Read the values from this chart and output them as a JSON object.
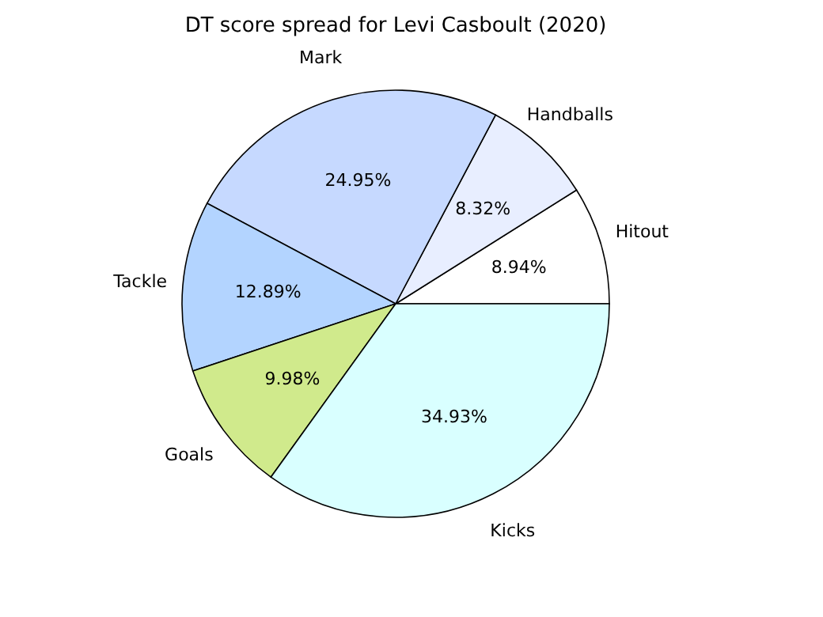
{
  "chart_data": {
    "type": "pie",
    "title": "DT score spread for Levi Casboult (2020)",
    "categories": [
      "Hitout",
      "Handballs",
      "Mark",
      "Tackle",
      "Goals",
      "Kicks"
    ],
    "values": [
      8.94,
      8.32,
      24.95,
      12.89,
      9.98,
      34.93
    ],
    "value_labels": [
      "8.94%",
      "8.32%",
      "24.95%",
      "12.89%",
      "9.98%",
      "34.93%"
    ],
    "colors": [
      "#ffffff",
      "#e8eeff",
      "#c6d9ff",
      "#b3d4ff",
      "#d0ea8c",
      "#d9ffff"
    ],
    "legend": false
  }
}
